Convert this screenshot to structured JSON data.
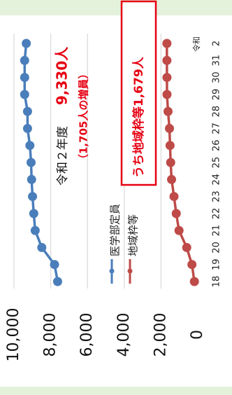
{
  "chart_data": {
    "type": "line",
    "orientation": "rotated-90",
    "x": [
      "18",
      "19",
      "20",
      "21",
      "22",
      "23",
      "24",
      "25",
      "26",
      "27",
      "28",
      "29",
      "30",
      "31",
      "2"
    ],
    "x_prefix": "令和",
    "series": [
      {
        "name": "医学部定員",
        "color": "#4a7ebb",
        "values": [
          7625,
          7793,
          8486,
          8846,
          8923,
          8991,
          9041,
          9069,
          9134,
          9262,
          9262,
          9420,
          9419,
          9420,
          9330
        ]
      },
      {
        "name": "地域枠等",
        "color": "#be4b48",
        "values": [
          183,
          317,
          600,
          1020,
          1171,
          1292,
          1425,
          1474,
          1508,
          1539,
          1617,
          1674,
          1676,
          1679,
          1679
        ]
      }
    ],
    "yticks": [
      "0",
      "2,000",
      "4,000",
      "6,000",
      "8,000",
      "10,000"
    ],
    "ylim": [
      0,
      10000
    ],
    "grid": true,
    "legend": "center",
    "annotations": {
      "year_label": "令和２年度",
      "total": "9,330人",
      "increase": "（1,705人の増員）",
      "box": "うち地域枠等1,679人"
    }
  }
}
